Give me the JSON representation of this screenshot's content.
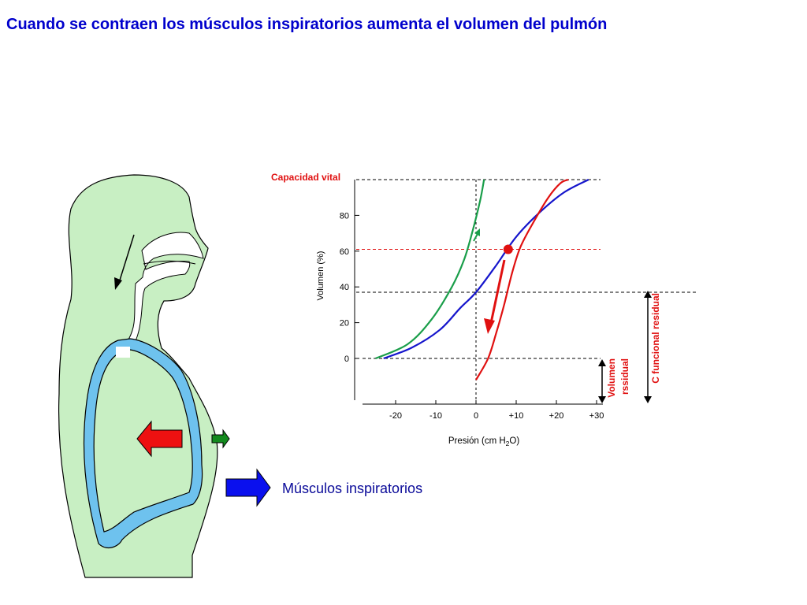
{
  "slide": {
    "title": "Cuando se contraen los músculos inspiratorios aumenta el volumen del pulmón"
  },
  "labels": {
    "muscles": "Músculos inspiratorios",
    "vital_capacity": "Capacidad vital",
    "residual_volume_line1": "Volumen",
    "residual_volume_line2": "rssidual",
    "functional_residual": "C funcional residual"
  },
  "chart_data": {
    "type": "line",
    "xlabel_prefix": "Presión (cm H",
    "xlabel_sub": "2",
    "xlabel_suffix": "O)",
    "ylabel": "Volumen (%)",
    "x_ticks": [
      "-20",
      "-10",
      "0",
      "+10",
      "+20",
      "+30"
    ],
    "y_ticks": [
      "0",
      "20",
      "40",
      "60",
      "80"
    ],
    "series": [
      {
        "color": "#1a9e4a",
        "points": [
          [
            -25,
            0
          ],
          [
            -17,
            8
          ],
          [
            -11,
            22
          ],
          [
            -6,
            40
          ],
          [
            -3,
            55
          ],
          [
            -1,
            70
          ],
          [
            1,
            88
          ],
          [
            2,
            100
          ]
        ]
      },
      {
        "color": "#1515cc",
        "points": [
          [
            -23,
            0
          ],
          [
            -16,
            6
          ],
          [
            -9,
            16
          ],
          [
            -4,
            28
          ],
          [
            0,
            37
          ],
          [
            5,
            52
          ],
          [
            10,
            68
          ],
          [
            16,
            82
          ],
          [
            22,
            93
          ],
          [
            28,
            100
          ]
        ]
      },
      {
        "color": "#e01010",
        "points": [
          [
            0,
            -12
          ],
          [
            3,
            0
          ],
          [
            5,
            14
          ],
          [
            7,
            30
          ],
          [
            9,
            48
          ],
          [
            11,
            62
          ],
          [
            14,
            75
          ],
          [
            18,
            90
          ],
          [
            21,
            98
          ],
          [
            23,
            100
          ]
        ]
      }
    ],
    "reference_lines": [
      {
        "y": 100,
        "color": "#000000"
      },
      {
        "y": 61,
        "color": "#e01010"
      },
      {
        "y": 37,
        "color": "#000000"
      },
      {
        "y": 0,
        "color": "#000000"
      }
    ],
    "marker": {
      "x": 8,
      "y": 61,
      "color": "#e01010"
    }
  },
  "colors": {
    "body": "#c8efc3",
    "lung": "#6ec2ee",
    "arrow_red": "#ee1111",
    "arrow_green": "#138a1e",
    "arrow_blue": "#0a10ee"
  }
}
